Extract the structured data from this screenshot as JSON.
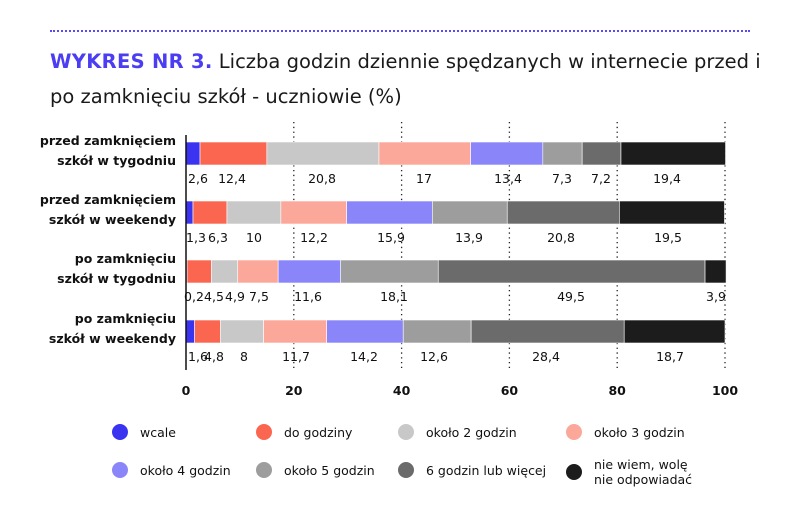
{
  "title": {
    "lead": "WYKRES NR 3.",
    "text": " Liczba godzin dziennie spędzanych w internecie przed i po zamknięciu szkół - uczniowie (%)"
  },
  "chart_data": {
    "type": "bar",
    "orientation": "horizontal",
    "stacked": true,
    "categories": [
      "przed zamknięciem\nszkół w tygodniu",
      "przed zamknięciem\nszkół w weekendy",
      "po zamknięciu\nszkół w tygodniu",
      "po zamknięciu\nszkół w weekendy"
    ],
    "series": [
      {
        "name": "wcale",
        "color": "#3a33f0",
        "values": [
          2.6,
          1.3,
          0.2,
          1.6
        ]
      },
      {
        "name": "do godziny",
        "color": "#fa6650",
        "values": [
          12.4,
          6.3,
          4.5,
          4.8
        ]
      },
      {
        "name": "około 2 godzin",
        "color": "#c8c8c8",
        "values": [
          20.8,
          10,
          4.9,
          8
        ]
      },
      {
        "name": "około 3 godzin",
        "color": "#fba89a",
        "values": [
          17,
          12.2,
          7.5,
          11.7
        ]
      },
      {
        "name": "około 4 godzin",
        "color": "#8a86fa",
        "values": [
          13.4,
          15.9,
          11.6,
          14.2
        ]
      },
      {
        "name": "około 5 godzin",
        "color": "#9d9d9d",
        "values": [
          7.3,
          13.9,
          18.1,
          12.6
        ]
      },
      {
        "name": "6 godzin lub więcej",
        "color": "#6b6b6b",
        "values": [
          7.2,
          20.8,
          49.5,
          28.4
        ]
      },
      {
        "name": "nie wiem, wolę\nnie odpowiadać",
        "color": "#1c1c1c",
        "values": [
          19.4,
          19.5,
          3.9,
          18.7
        ]
      }
    ],
    "value_labels": [
      [
        "2,6",
        "12,4",
        "20,8",
        "17",
        "13,4",
        "7,3",
        "7,2",
        "19,4"
      ],
      [
        "1,3",
        "6,3",
        "10",
        "12,2",
        "15,9",
        "13,9",
        "20,8",
        "19,5"
      ],
      [
        "0,2",
        "4,5",
        "4,9",
        "7,5",
        "11,6",
        "18,1",
        "49,5",
        "3,9"
      ],
      [
        "1,6",
        "4,8",
        "8",
        "11,7",
        "14,2",
        "12,6",
        "28,4",
        "18,7"
      ]
    ],
    "xlim": [
      0,
      100
    ],
    "xticks": [
      "0",
      "20",
      "40",
      "60",
      "80",
      "100"
    ],
    "grid": "dotted vertical",
    "legend_position": "bottom"
  }
}
